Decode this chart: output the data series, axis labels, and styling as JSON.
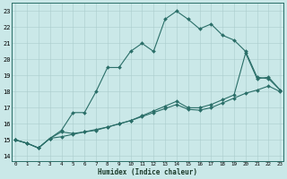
{
  "xlabel": "Humidex (Indice chaleur)",
  "bg_color": "#cae8e8",
  "grid_color": "#aacccc",
  "line_color": "#2a6e68",
  "xlim": [
    -0.3,
    23.3
  ],
  "ylim": [
    13.7,
    23.5
  ],
  "xticks": [
    0,
    1,
    2,
    3,
    4,
    5,
    6,
    7,
    8,
    9,
    10,
    11,
    12,
    13,
    14,
    15,
    16,
    17,
    18,
    19,
    20,
    21,
    22,
    23
  ],
  "yticks": [
    14,
    15,
    16,
    17,
    18,
    19,
    20,
    21,
    22,
    23
  ],
  "line1_x": [
    0,
    1,
    2,
    3,
    4,
    5,
    6,
    7,
    8,
    9,
    10,
    11,
    12,
    13,
    14,
    15,
    16,
    17,
    18,
    19,
    20,
    21,
    22,
    23
  ],
  "line1_y": [
    15.0,
    14.8,
    14.5,
    15.1,
    15.6,
    16.7,
    16.7,
    18.0,
    19.5,
    19.5,
    20.5,
    21.0,
    20.5,
    22.5,
    23.0,
    22.5,
    21.9,
    22.2,
    21.5,
    21.2,
    20.5,
    18.9,
    18.8,
    18.1
  ],
  "line2_x": [
    0,
    1,
    2,
    3,
    4,
    5,
    6,
    7,
    8,
    9,
    10,
    11,
    12,
    13,
    14,
    15,
    16,
    17,
    18,
    19,
    20,
    21,
    22,
    23
  ],
  "line2_y": [
    15.0,
    14.8,
    14.5,
    15.1,
    15.5,
    15.4,
    15.5,
    15.6,
    15.8,
    16.0,
    16.2,
    16.5,
    16.8,
    17.1,
    17.4,
    17.0,
    17.0,
    17.2,
    17.5,
    17.8,
    20.4,
    18.8,
    18.9,
    18.1
  ],
  "line3_x": [
    0,
    1,
    2,
    3,
    4,
    5,
    6,
    7,
    8,
    9,
    10,
    11,
    12,
    13,
    14,
    15,
    16,
    17,
    18,
    19,
    20,
    21,
    22,
    23
  ],
  "line3_y": [
    15.0,
    14.8,
    14.5,
    15.1,
    15.2,
    15.35,
    15.5,
    15.65,
    15.8,
    16.0,
    16.2,
    16.45,
    16.7,
    16.95,
    17.2,
    16.9,
    16.85,
    17.0,
    17.3,
    17.6,
    17.9,
    18.1,
    18.35,
    18.0
  ]
}
